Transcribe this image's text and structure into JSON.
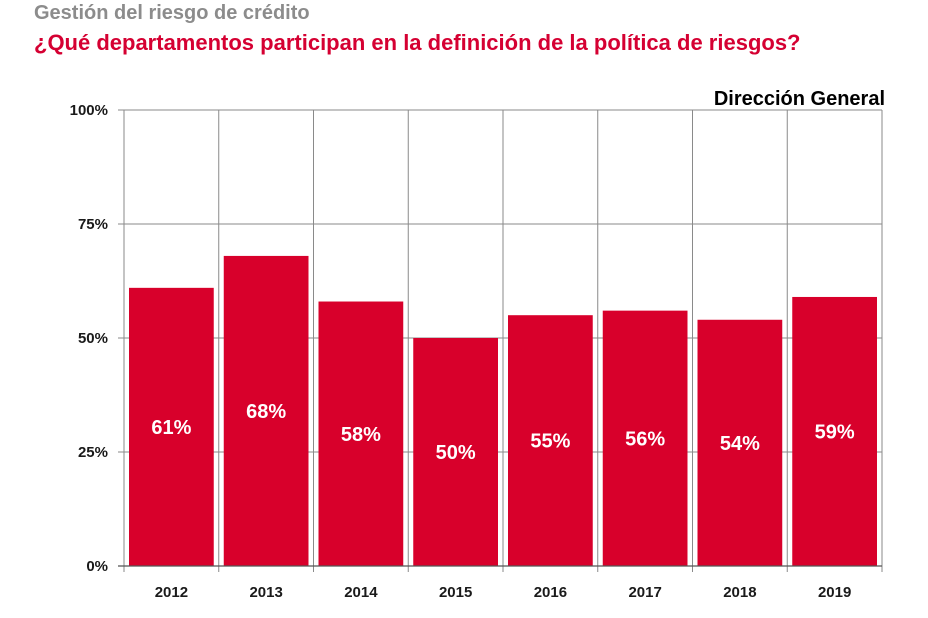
{
  "header": {
    "supertitle": "Gestión del riesgo de crédito",
    "title": "¿Qué departamentos participan en la definición de la política de riesgos?"
  },
  "colors": {
    "bar": "#d8002b",
    "title": "#d50032",
    "supertitle": "#8c8c8c",
    "grid": "#8a8a8a"
  },
  "chart_data": {
    "type": "bar",
    "series_label": "Dirección General",
    "categories": [
      "2012",
      "2013",
      "2014",
      "2015",
      "2016",
      "2017",
      "2018",
      "2019"
    ],
    "values": [
      61,
      68,
      58,
      50,
      55,
      56,
      54,
      59
    ],
    "value_labels": [
      "61%",
      "68%",
      "58%",
      "50%",
      "55%",
      "56%",
      "54%",
      "59%"
    ],
    "ylim": [
      0,
      100
    ],
    "yticks": [
      0,
      25,
      50,
      75,
      100
    ],
    "ytick_labels": [
      "0%",
      "25%",
      "50%",
      "75%",
      "100%"
    ],
    "grid": true
  }
}
